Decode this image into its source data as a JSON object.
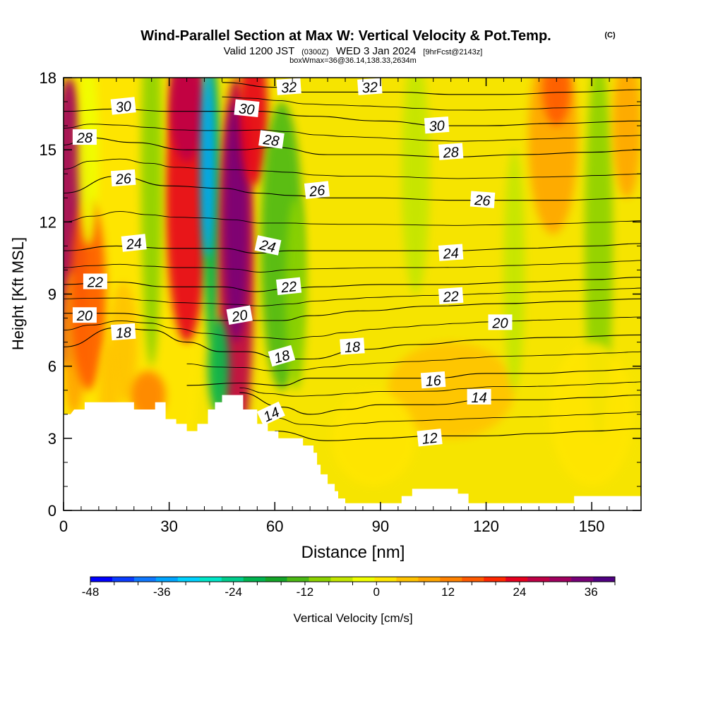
{
  "header": {
    "title": "Wind-Parallel Section at Max W: Vertical Velocity & Pot.Temp.",
    "copyright": "(C)",
    "valid_prefix": "Valid 1200 JST",
    "valid_zulu": "(0300Z)",
    "valid_date": "WED 3 Jan 2024",
    "forecast_info": "[9hrFcst@2143z]",
    "box_info": "boxWmax=36@36.14,138.33,2634m"
  },
  "chart_data": {
    "type": "heatmap",
    "title": "Wind-Parallel Section at Max W: Vertical Velocity & Pot.Temp.",
    "xlabel": "Distance [nm]",
    "ylabel": "Height [Kft MSL]",
    "xlim": [
      0,
      164
    ],
    "ylim": [
      0,
      18
    ],
    "x_ticks": [
      0,
      30,
      60,
      90,
      120,
      150
    ],
    "y_ticks": [
      0,
      3,
      6,
      9,
      12,
      15,
      18
    ],
    "colorbar": {
      "label": "Vertical Velocity [cm/s]",
      "range": [
        -48,
        40
      ],
      "step": 4,
      "tick_values": [
        -48,
        -36,
        -24,
        -12,
        0,
        12,
        24,
        36
      ],
      "tick_labels": [
        "-48",
        "-36",
        "-24",
        "-12",
        "0",
        "12",
        "24",
        "36"
      ],
      "colors": [
        "#0000ff",
        "#0a3cff",
        "#0f78ff",
        "#00a5ff",
        "#00d2ff",
        "#00e6c8",
        "#00cd8c",
        "#00b450",
        "#14a528",
        "#4bb914",
        "#8cd200",
        "#c3e600",
        "#f0ff00",
        "#ffe600",
        "#ffc300",
        "#ffa500",
        "#ff8200",
        "#ff5a00",
        "#ff2800",
        "#e6001e",
        "#be0046",
        "#a0005f",
        "#780078",
        "#500082"
      ]
    },
    "terrain_kft": [
      [
        0,
        4.0
      ],
      [
        2,
        4.0
      ],
      [
        3,
        4.2
      ],
      [
        6,
        4.2
      ],
      [
        6,
        4.5
      ],
      [
        20,
        4.5
      ],
      [
        20,
        4.2
      ],
      [
        26,
        4.2
      ],
      [
        26,
        4.5
      ],
      [
        29,
        4.5
      ],
      [
        29,
        3.8
      ],
      [
        32,
        3.8
      ],
      [
        32,
        3.6
      ],
      [
        35,
        3.6
      ],
      [
        35,
        3.3
      ],
      [
        38,
        3.3
      ],
      [
        38,
        3.6
      ],
      [
        41,
        3.6
      ],
      [
        41,
        4.2
      ],
      [
        43,
        4.2
      ],
      [
        43,
        4.5
      ],
      [
        45,
        4.5
      ],
      [
        45,
        4.8
      ],
      [
        51,
        4.8
      ],
      [
        51,
        4.2
      ],
      [
        55,
        4.2
      ],
      [
        55,
        3.6
      ],
      [
        58,
        3.6
      ],
      [
        58,
        3.3
      ],
      [
        61,
        3.3
      ],
      [
        61,
        3.0
      ],
      [
        68,
        3.0
      ],
      [
        68,
        2.7
      ],
      [
        71,
        2.7
      ],
      [
        71,
        2.4
      ],
      [
        72,
        2.4
      ],
      [
        72,
        1.9
      ],
      [
        73,
        1.9
      ],
      [
        73,
        1.5
      ],
      [
        75,
        1.5
      ],
      [
        75,
        1.1
      ],
      [
        77,
        1.1
      ],
      [
        77,
        0.8
      ],
      [
        78,
        0.8
      ],
      [
        78,
        0.5
      ],
      [
        80,
        0.5
      ],
      [
        80,
        0.3
      ],
      [
        96,
        0.3
      ],
      [
        96,
        0.6
      ],
      [
        99,
        0.6
      ],
      [
        99,
        0.9
      ],
      [
        112,
        0.9
      ],
      [
        112,
        0.7
      ],
      [
        115,
        0.7
      ],
      [
        115,
        0.3
      ],
      [
        145,
        0.3
      ],
      [
        145,
        0.6
      ],
      [
        164,
        0.6
      ]
    ],
    "series": [
      {
        "name": "12",
        "values": [
          [
            60,
            3.3
          ],
          [
            75,
            2.9
          ],
          [
            90,
            3.0
          ],
          [
            105,
            3.1
          ],
          [
            120,
            3.1
          ],
          [
            135,
            3.2
          ],
          [
            150,
            3.3
          ],
          [
            164,
            3.4
          ]
        ]
      },
      {
        "name": "14",
        "values": [
          [
            50,
            4.9
          ],
          [
            62,
            4.3
          ],
          [
            70,
            4.0
          ],
          [
            80,
            4.2
          ],
          [
            90,
            4.4
          ],
          [
            105,
            4.4
          ],
          [
            120,
            4.6
          ],
          [
            135,
            4.6
          ],
          [
            150,
            4.7
          ],
          [
            164,
            4.8
          ]
        ]
      },
      {
        "name": "16",
        "values": [
          [
            35,
            5.2
          ],
          [
            50,
            5.3
          ],
          [
            62,
            5.2
          ],
          [
            70,
            5.5
          ],
          [
            80,
            5.5
          ],
          [
            90,
            5.5
          ],
          [
            105,
            5.5
          ],
          [
            120,
            5.7
          ],
          [
            135,
            5.7
          ],
          [
            150,
            5.8
          ],
          [
            164,
            5.9
          ]
        ]
      },
      {
        "name": "18",
        "values": [
          [
            0,
            6.8
          ],
          [
            15,
            7.6
          ],
          [
            25,
            7.5
          ],
          [
            35,
            7.0
          ],
          [
            45,
            6.6
          ],
          [
            52,
            6.6
          ],
          [
            62,
            6.3
          ],
          [
            70,
            6.3
          ],
          [
            85,
            6.7
          ],
          [
            100,
            6.9
          ],
          [
            120,
            7.1
          ],
          [
            140,
            7.2
          ],
          [
            164,
            7.3
          ]
        ]
      },
      {
        "name": "20",
        "values": [
          [
            0,
            8.2
          ],
          [
            15,
            8.2
          ],
          [
            30,
            8.0
          ],
          [
            45,
            7.9
          ],
          [
            52,
            7.9
          ],
          [
            62,
            7.9
          ],
          [
            70,
            8.1
          ],
          [
            85,
            8.3
          ],
          [
            105,
            8.5
          ],
          [
            124,
            8.6
          ],
          [
            145,
            8.7
          ],
          [
            164,
            8.8
          ]
        ]
      },
      {
        "name": "22",
        "values": [
          [
            0,
            9.4
          ],
          [
            15,
            9.5
          ],
          [
            30,
            9.3
          ],
          [
            45,
            9.3
          ],
          [
            55,
            9.1
          ],
          [
            62,
            9.2
          ],
          [
            72,
            9.3
          ],
          [
            90,
            9.4
          ],
          [
            110,
            9.4
          ],
          [
            130,
            9.5
          ],
          [
            150,
            9.6
          ],
          [
            164,
            9.7
          ]
        ]
      },
      {
        "name": "24",
        "values": [
          [
            0,
            10.8
          ],
          [
            15,
            11.0
          ],
          [
            30,
            10.9
          ],
          [
            45,
            10.9
          ],
          [
            55,
            10.7
          ],
          [
            64,
            10.8
          ],
          [
            80,
            10.8
          ],
          [
            100,
            10.8
          ],
          [
            110,
            10.8
          ],
          [
            130,
            10.9
          ],
          [
            150,
            11.0
          ],
          [
            164,
            11.1
          ]
        ]
      },
      {
        "name": "26",
        "values": [
          [
            0,
            13.2
          ],
          [
            15,
            13.9
          ],
          [
            30,
            13.5
          ],
          [
            45,
            13.4
          ],
          [
            55,
            13.2
          ],
          [
            65,
            13.1
          ],
          [
            75,
            13.0
          ],
          [
            90,
            13.0
          ],
          [
            110,
            12.9
          ],
          [
            120,
            12.9
          ],
          [
            140,
            12.9
          ],
          [
            164,
            13.0
          ]
        ]
      },
      {
        "name": "28",
        "values": [
          [
            0,
            15.2
          ],
          [
            7,
            15.5
          ],
          [
            20,
            15.3
          ],
          [
            35,
            15.0
          ],
          [
            50,
            15.0
          ],
          [
            60,
            15.1
          ],
          [
            75,
            14.8
          ],
          [
            90,
            14.8
          ],
          [
            110,
            14.7
          ],
          [
            130,
            14.8
          ],
          [
            150,
            14.9
          ],
          [
            164,
            15.0
          ]
        ]
      },
      {
        "name": "30",
        "values": [
          [
            0,
            16.6
          ],
          [
            15,
            16.7
          ],
          [
            30,
            16.6
          ],
          [
            45,
            16.6
          ],
          [
            55,
            16.6
          ],
          [
            70,
            16.4
          ],
          [
            90,
            16.2
          ],
          [
            108,
            16.0
          ],
          [
            120,
            16.0
          ],
          [
            140,
            16.1
          ],
          [
            164,
            16.2
          ]
        ]
      },
      {
        "name": "32",
        "values": [
          [
            45,
            17.8
          ],
          [
            60,
            17.6
          ],
          [
            68,
            17.4
          ],
          [
            80,
            17.4
          ],
          [
            95,
            17.4
          ],
          [
            110,
            17.3
          ],
          [
            125,
            17.3
          ],
          [
            145,
            17.4
          ],
          [
            164,
            17.5
          ]
        ]
      }
    ]
  }
}
